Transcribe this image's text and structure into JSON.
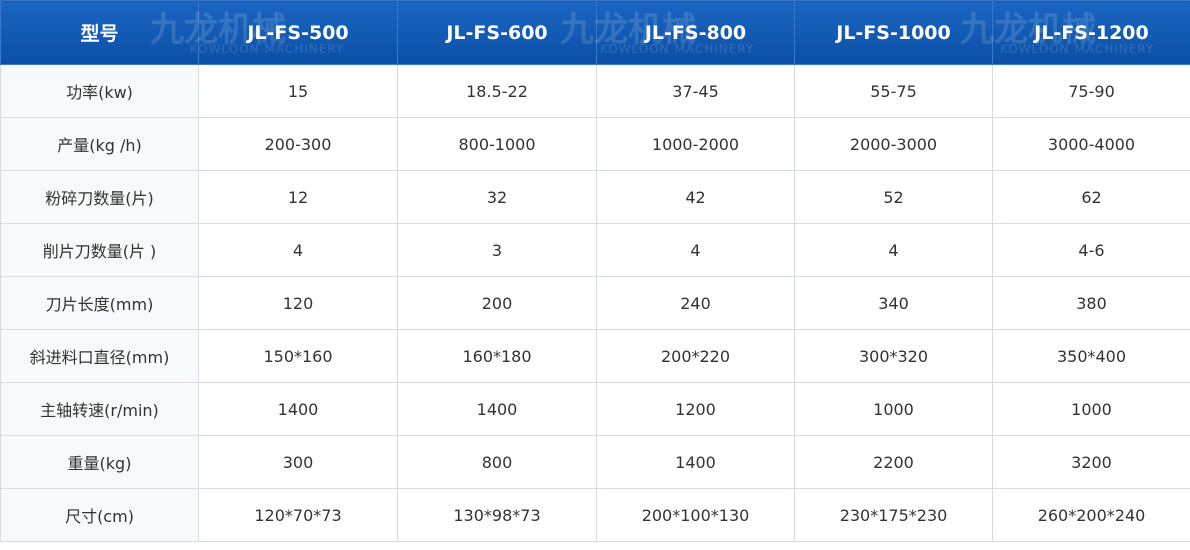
{
  "table": {
    "header": [
      "型号",
      "JL-FS-500",
      "JL-FS-600",
      "JL-FS-800",
      "JL-FS-1000",
      "JL-FS-1200"
    ],
    "rows": [
      [
        "功率(kw)",
        "15",
        "18.5-22",
        "37-45",
        "55-75",
        "75-90"
      ],
      [
        "产量(kg /h)",
        "200-300",
        "800-1000",
        "1000-2000",
        "2000-3000",
        "3000-4000"
      ],
      [
        "粉碎刀数量(片)",
        "12",
        "32",
        "42",
        "52",
        "62"
      ],
      [
        "削片刀数量(片 )",
        "4",
        "3",
        "4",
        "4",
        "4-6"
      ],
      [
        "刀片长度(mm)",
        "120",
        "200",
        "240",
        "340",
        "380"
      ],
      [
        "斜进料口直径(mm)",
        "150*160",
        "160*180",
        "200*220",
        "300*320",
        "350*400"
      ],
      [
        "主轴转速(r/min)",
        "1400",
        "1400",
        "1200",
        "1000",
        "1000"
      ],
      [
        "重量(kg)",
        "300",
        "800",
        "1400",
        "2200",
        "3200"
      ],
      [
        "尺寸(cm)",
        "120*70*73",
        "130*98*73",
        "200*100*130",
        "230*175*230",
        "260*200*240"
      ]
    ]
  },
  "watermark": {
    "brand": "九龙机械",
    "english": "KOWLOON MACHINERY"
  }
}
